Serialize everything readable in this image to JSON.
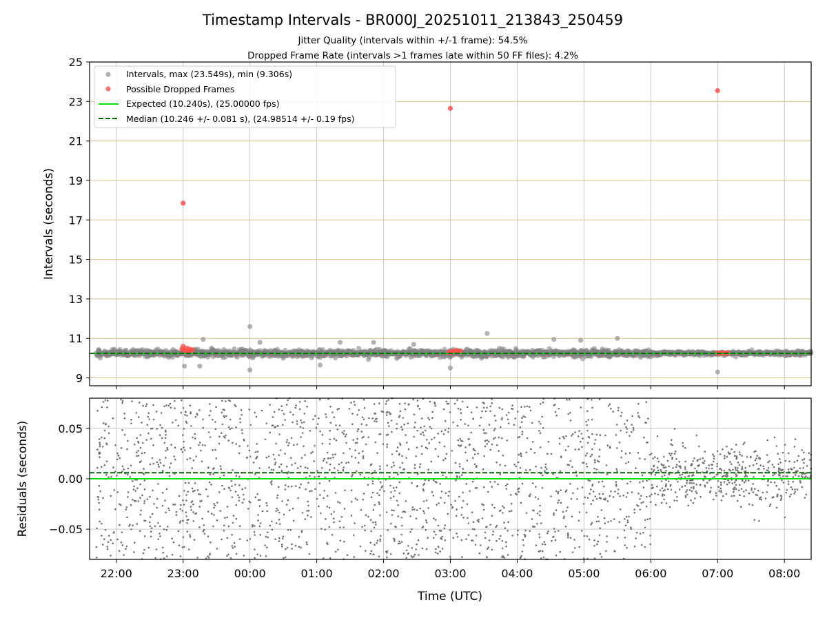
{
  "chart_data": [
    {
      "type": "scatter",
      "panel": "intervals",
      "title": "Timestamp Intervals - BR000J_20251011_213843_250459",
      "subtitle_lines": [
        "Jitter Quality (intervals within +/-1 frame): 54.5%",
        "Dropped Frame Rate (intervals >1 frames late within 50 FF files): 4.2%"
      ],
      "xlabel": "",
      "ylabel": "Intervals (seconds)",
      "xlim_hours": [
        -2.4,
        8.4
      ],
      "ylim": [
        8.6,
        25
      ],
      "yticks": [
        9,
        11,
        13,
        15,
        17,
        19,
        21,
        23,
        25
      ],
      "grid": true,
      "legend_position": "top-left",
      "legend": [
        {
          "label": "Intervals, max (23.549s), min (9.306s)",
          "kind": "marker",
          "color": "#808080"
        },
        {
          "label": "Possible Dropped Frames",
          "kind": "marker",
          "color": "#ff4d4d"
        },
        {
          "label": "Expected (10.240s), (25.00000 fps)",
          "kind": "line",
          "color": "#00e000"
        },
        {
          "label": "Median (10.246 +/- 0.081 s), (24.98514 +/- 0.19 fps)",
          "kind": "dashed",
          "color": "#006400"
        }
      ],
      "series": [
        {
          "name": "Intervals",
          "color": "#808080",
          "baseline": 10.246,
          "x_range_hours": [
            -2.3,
            8.4
          ],
          "outliers": [
            [
              -0.98,
              9.6
            ],
            [
              -0.7,
              10.95
            ],
            [
              -0.75,
              9.6
            ],
            [
              0,
              11.6
            ],
            [
              0,
              9.4
            ],
            [
              0.15,
              10.8
            ],
            [
              1.05,
              9.65
            ],
            [
              1.35,
              10.8
            ],
            [
              1.85,
              10.8
            ],
            [
              2.45,
              10.7
            ],
            [
              3.0,
              9.5
            ],
            [
              3.55,
              11.25
            ],
            [
              4.55,
              10.95
            ],
            [
              4.95,
              10.9
            ],
            [
              5.5,
              11.0
            ],
            [
              7.0,
              9.3
            ]
          ]
        },
        {
          "name": "Possible Dropped Frames",
          "color": "#ff4d4d",
          "points": [
            [
              -1.0,
              17.85
            ],
            [
              3.0,
              22.65
            ],
            [
              7.0,
              23.55
            ],
            [
              -1.02,
              10.45
            ],
            [
              -1.0,
              10.6
            ],
            [
              -0.98,
              10.4
            ],
            [
              -0.96,
              10.35
            ],
            [
              -0.94,
              10.5
            ],
            [
              -0.92,
              10.3
            ],
            [
              -0.9,
              10.45
            ],
            [
              -0.88,
              10.38
            ],
            [
              -0.86,
              10.42
            ],
            [
              2.98,
              10.3
            ],
            [
              3.0,
              10.28
            ],
            [
              3.03,
              10.35
            ],
            [
              3.06,
              10.3
            ],
            [
              3.09,
              10.4
            ],
            [
              3.12,
              10.32
            ],
            [
              3.15,
              10.36
            ],
            [
              7.0,
              10.26
            ],
            [
              7.03,
              10.26
            ],
            [
              7.06,
              10.26
            ],
            [
              7.09,
              10.26
            ],
            [
              7.12,
              10.26
            ],
            [
              7.15,
              10.26
            ]
          ]
        }
      ],
      "expected_line": 10.24,
      "median_line": 10.246
    },
    {
      "type": "scatter",
      "panel": "residuals",
      "xlabel": "Time (UTC)",
      "ylabel": "Residuals (seconds)",
      "xlim_hours": [
        -2.4,
        8.4
      ],
      "ylim": [
        -0.08,
        0.08
      ],
      "yticks": [
        -0.05,
        0.0,
        0.05
      ],
      "ytick_labels": [
        "−0.05",
        "0.00",
        "0.05"
      ],
      "xticks_hours": [
        -2,
        -1,
        0,
        1,
        2,
        3,
        4,
        5,
        6,
        7,
        8
      ],
      "xtick_labels": [
        "22:00",
        "23:00",
        "00:00",
        "01:00",
        "02:00",
        "03:00",
        "04:00",
        "05:00",
        "06:00",
        "07:00",
        "08:00"
      ],
      "grid": true,
      "zero_line": 0.0,
      "median_line": 0.006,
      "series": [
        {
          "name": "Residuals",
          "color": "#707070",
          "spread_before_0600": 0.08,
          "spread_after_0600": 0.035,
          "x_range_hours": [
            -2.3,
            8.4
          ]
        }
      ]
    }
  ]
}
